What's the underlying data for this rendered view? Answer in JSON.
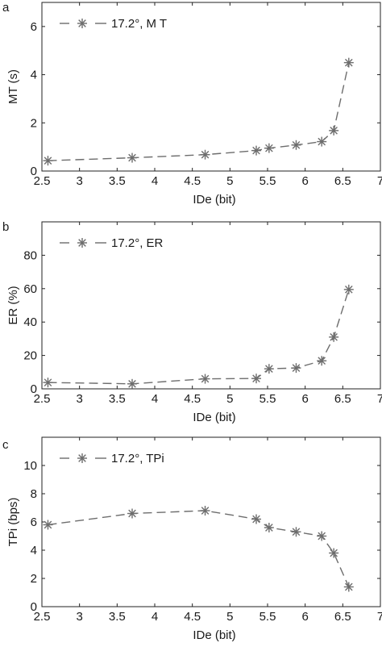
{
  "chart_data": [
    {
      "type": "line",
      "panel_label": "a",
      "xlabel": "IDe (bit)",
      "ylabel": "MT (s)",
      "xlim": [
        2.5,
        7
      ],
      "ylim": [
        0,
        7
      ],
      "xticks": [
        "2.5",
        "3",
        "3.5",
        "4",
        "4.5",
        "5",
        "5.5",
        "6",
        "6.5",
        "7"
      ],
      "yticks": [
        "0",
        "2",
        "4",
        "6"
      ],
      "legend_position": "top-left",
      "series": [
        {
          "name": "17.2°, M T",
          "x": [
            2.58,
            3.7,
            4.67,
            5.35,
            5.52,
            5.88,
            6.22,
            6.38,
            6.58
          ],
          "y": [
            0.43,
            0.55,
            0.68,
            0.85,
            0.95,
            1.08,
            1.22,
            1.68,
            4.5
          ]
        }
      ]
    },
    {
      "type": "line",
      "panel_label": "b",
      "xlabel": "IDe (bit)",
      "ylabel": "ER (%)",
      "xlim": [
        2.5,
        7
      ],
      "ylim": [
        0,
        100
      ],
      "xticks": [
        "2.5",
        "3",
        "3.5",
        "4",
        "4.5",
        "5",
        "5.5",
        "6",
        "6.5",
        "7"
      ],
      "yticks": [
        "0",
        "20",
        "40",
        "60",
        "80"
      ],
      "legend_position": "top-left",
      "series": [
        {
          "name": "17.2°, ER",
          "x": [
            2.58,
            3.7,
            4.67,
            5.35,
            5.52,
            5.88,
            6.22,
            6.38,
            6.58
          ],
          "y": [
            3.8,
            3.0,
            6.0,
            6.2,
            12.0,
            12.5,
            16.8,
            31.0,
            59.5
          ]
        }
      ]
    },
    {
      "type": "line",
      "panel_label": "c",
      "xlabel": "IDe (bit)",
      "ylabel": "TPi (bps)",
      "xlim": [
        2.5,
        7
      ],
      "ylim": [
        0,
        12
      ],
      "xticks": [
        "2.5",
        "3",
        "3.5",
        "4",
        "4.5",
        "5",
        "5.5",
        "6",
        "6.5",
        "7"
      ],
      "yticks": [
        "0",
        "2",
        "4",
        "6",
        "8",
        "10"
      ],
      "legend_position": "top-left",
      "series": [
        {
          "name": "17.2°, TPi",
          "x": [
            2.58,
            3.7,
            4.67,
            5.35,
            5.52,
            5.88,
            6.22,
            6.38,
            6.58
          ],
          "y": [
            5.8,
            6.6,
            6.8,
            6.2,
            5.6,
            5.3,
            5.0,
            3.8,
            1.4
          ]
        }
      ]
    }
  ]
}
